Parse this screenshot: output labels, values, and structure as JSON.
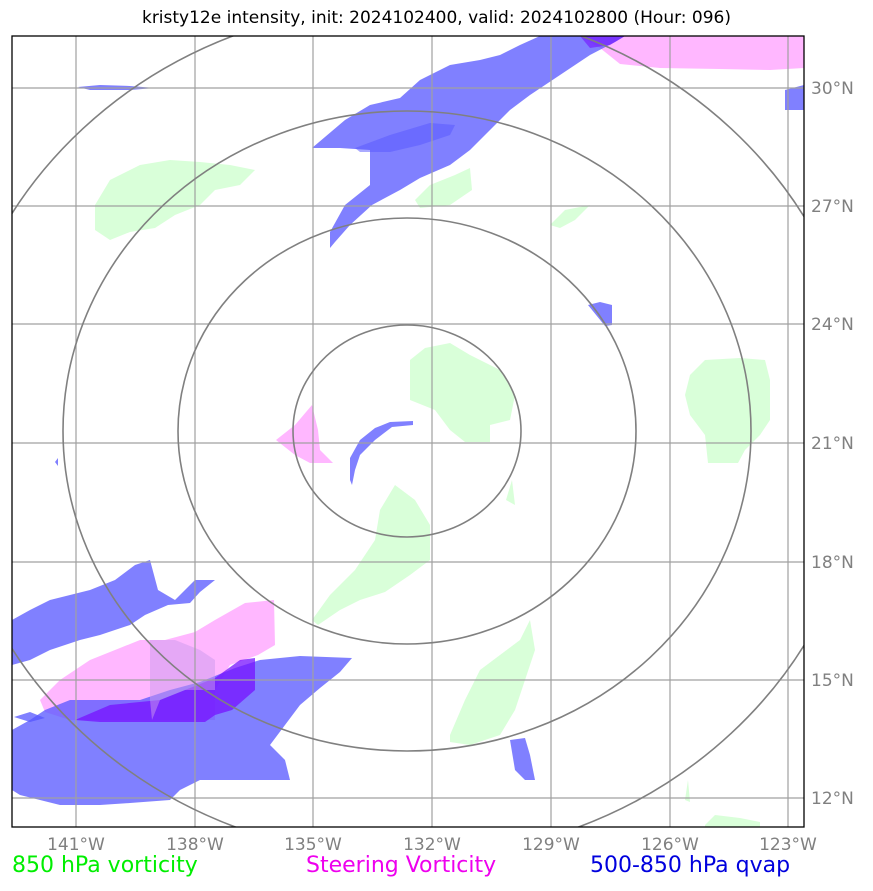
{
  "title": "kristy12e intensity, init: 2024102400, valid: 2024102800 (Hour: 096)",
  "map": {
    "lon_ticks": [
      "141°W",
      "138°W",
      "135°W",
      "132°W",
      "129°W",
      "126°W",
      "123°W"
    ],
    "lat_ticks": [
      "30°N",
      "27°N",
      "24°N",
      "21°N",
      "18°N",
      "15°N",
      "12°N"
    ],
    "storm_center": {
      "lon": -132.6,
      "lat": 21.4
    },
    "range_rings_deg": [
      2.7,
      5.6,
      8.5,
      11.5
    ],
    "colors": {
      "vorticity_850": "#ccffcc",
      "steering_vorticity": "#ff99ff",
      "qvap_500_850": "#5555ff",
      "grid": "#a0a0a0",
      "rings": "#808080"
    }
  },
  "legend": {
    "vort850": "850 hPa vorticity",
    "steering": "Steering Vorticity",
    "qvap": "500-850 hPa qvap"
  }
}
